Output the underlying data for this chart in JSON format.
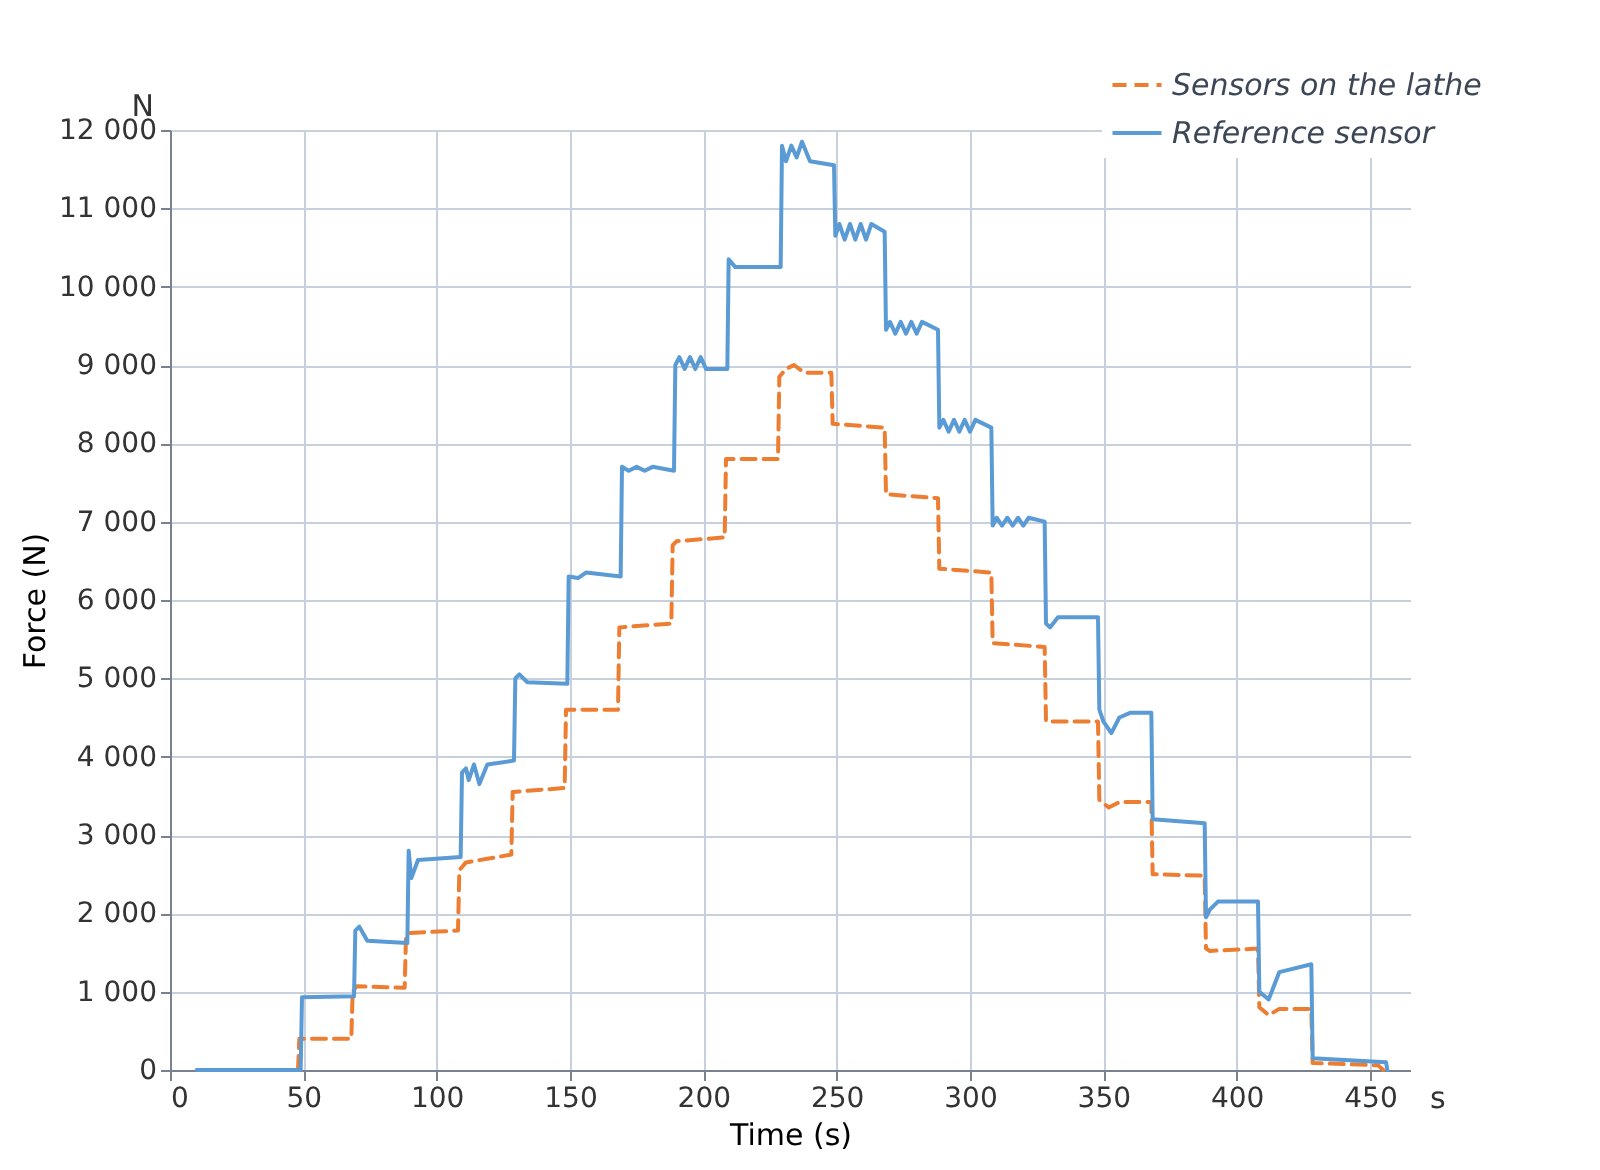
{
  "chart_data": {
    "type": "line",
    "xlabel": "Time (s)",
    "ylabel": "Force (N)",
    "annotations": [
      "N",
      "s"
    ],
    "xlim": [
      0,
      465
    ],
    "xticks": [
      0,
      50,
      100,
      150,
      200,
      250,
      300,
      350,
      400,
      450
    ],
    "ylim": [
      0,
      12000
    ],
    "yticks": [
      0,
      {
        "value": 1000,
        "label": "1 000"
      },
      {
        "value": 2000,
        "label": "2 000"
      },
      {
        "value": 3000,
        "label": "3 000"
      },
      {
        "value": 4000,
        "label": "4 000"
      },
      {
        "value": 5000,
        "label": "5 000"
      },
      {
        "value": 6000,
        "label": "6 000"
      },
      {
        "value": 7000,
        "label": "7 000"
      },
      {
        "value": 8000,
        "label": "8 000"
      },
      {
        "value": 9000,
        "label": "9 000"
      },
      {
        "value": 10000,
        "label": "10 000"
      },
      {
        "value": 11000,
        "label": "11 000"
      },
      {
        "value": 12000,
        "label": "12 000"
      }
    ],
    "grid": true,
    "legend": "top right",
    "marker": "none",
    "series": [
      {
        "name": "Sensors on the lathe",
        "color": "#ed7d31",
        "line_style": "dashed",
        "x": [
          48,
          48.5,
          68,
          68.5,
          70,
          88,
          88.5,
          90,
          108,
          108.5,
          111,
          128,
          128.5,
          148,
          148.5,
          168,
          168.5,
          188,
          188.5,
          190,
          208,
          208.5,
          228,
          228.5,
          231,
          234,
          238,
          248,
          248.5,
          268,
          268.5,
          288,
          288.5,
          308,
          308.5,
          328,
          328.5,
          348,
          348.5,
          352,
          356,
          368,
          368.5,
          388,
          388.5,
          390,
          408,
          408.5,
          412,
          416,
          428,
          428.5,
          453,
          455
        ],
        "values": [
          0,
          400,
          400,
          1000,
          1070,
          1050,
          1700,
          1750,
          1780,
          2550,
          2650,
          2750,
          3550,
          3600,
          4600,
          4600,
          5650,
          5700,
          6700,
          6750,
          6800,
          7800,
          7800,
          8850,
          8950,
          9000,
          8900,
          8900,
          8250,
          8200,
          7350,
          7300,
          6400,
          6350,
          5450,
          5400,
          4450,
          4450,
          3450,
          3350,
          3420,
          3420,
          2500,
          2480,
          1550,
          1520,
          1550,
          800,
          700,
          780,
          780,
          90,
          60,
          0
        ]
      },
      {
        "name": "Reference sensor",
        "color": "#5b9bd5",
        "line_style": "solid",
        "x": [
          10,
          49,
          49.5,
          69,
          69.5,
          71,
          74,
          89,
          89.5,
          90.5,
          93,
          109,
          109.5,
          111,
          112,
          114,
          116,
          119,
          129,
          129.5,
          131,
          134,
          149,
          149.5,
          153,
          156,
          169,
          169.5,
          172,
          175,
          178,
          181,
          189,
          189.5,
          191,
          193,
          195,
          197,
          199,
          201,
          209,
          209.5,
          212,
          229,
          229.5,
          231,
          233,
          235,
          237,
          240,
          249,
          249.5,
          251,
          253,
          255,
          257,
          259,
          261,
          263,
          268,
          268.5,
          270,
          272,
          274,
          276,
          278,
          280,
          282,
          288,
          288.5,
          290,
          292,
          294,
          296,
          298,
          300,
          302,
          308,
          308.5,
          310,
          312,
          314,
          316,
          318,
          320,
          322,
          328,
          328.5,
          330,
          333,
          348,
          348.5,
          350,
          353,
          356,
          360,
          368,
          368.5,
          388,
          388.5,
          390,
          393,
          408,
          408.5,
          412,
          416,
          428,
          428.5,
          456,
          456.5
        ],
        "values": [
          0,
          0,
          930,
          940,
          1780,
          1830,
          1650,
          1620,
          2800,
          2450,
          2680,
          2720,
          3800,
          3850,
          3700,
          3900,
          3650,
          3900,
          3950,
          5000,
          5050,
          4950,
          4930,
          6300,
          6280,
          6350,
          6300,
          7700,
          7650,
          7700,
          7650,
          7700,
          7650,
          9000,
          9100,
          8950,
          9100,
          8950,
          9100,
          8950,
          8950,
          10350,
          10250,
          10250,
          11800,
          11600,
          11800,
          11650,
          11850,
          11600,
          11550,
          10650,
          10800,
          10600,
          10800,
          10600,
          10800,
          10600,
          10800,
          10700,
          9450,
          9550,
          9400,
          9550,
          9400,
          9550,
          9400,
          9550,
          9450,
          8200,
          8300,
          8150,
          8300,
          8150,
          8300,
          8150,
          8300,
          8200,
          6950,
          7050,
          6950,
          7050,
          6950,
          7050,
          6950,
          7050,
          7000,
          5700,
          5650,
          5780,
          5780,
          4600,
          4450,
          4300,
          4500,
          4560,
          4560,
          3200,
          3150,
          1950,
          2050,
          2150,
          2150,
          1000,
          900,
          1250,
          1350,
          150,
          100,
          0
        ]
      }
    ]
  }
}
